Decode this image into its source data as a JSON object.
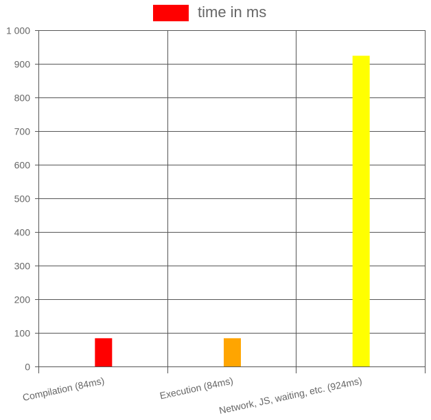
{
  "chart_data": {
    "type": "bar",
    "categories": [
      "Compilation (84ms)",
      "Execution (84ms)",
      "Network, JS, waiting, etc. (924ms)"
    ],
    "series": [
      {
        "name": "time in ms",
        "values": [
          84,
          84,
          924
        ],
        "colors": [
          "#ff0000",
          "#ffa500",
          "#ffff00"
        ]
      }
    ],
    "y_ticks": [
      "0",
      "100",
      "200",
      "300",
      "400",
      "500",
      "600",
      "700",
      "800",
      "900",
      "1 000"
    ],
    "ylim": [
      0,
      1000
    ],
    "grid": true,
    "legend": {
      "position": "top",
      "label": "time in ms",
      "color": "#ff0000"
    },
    "tick_label_rotation": "slanted",
    "title": "",
    "xlabel": "",
    "ylabel": ""
  }
}
